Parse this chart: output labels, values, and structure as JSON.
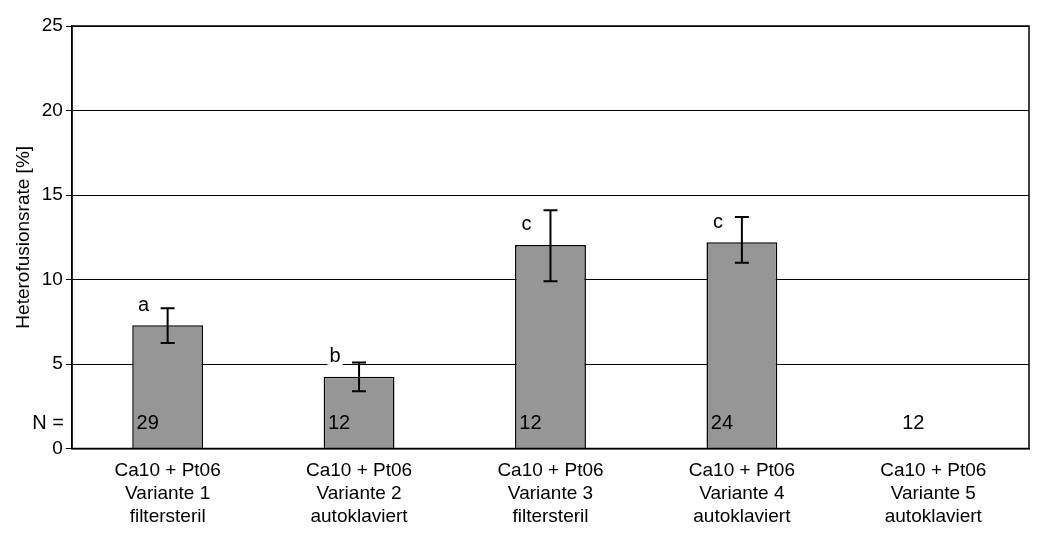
{
  "chart_data": {
    "type": "bar",
    "ylabel": "Heterofusionsrate [%]",
    "categories": [
      "Ca10 + Pt06\nVariante 1\nfiltersteril",
      "Ca10 + Pt06\nVariante 2\nautoklaviert",
      "Ca10 + Pt06\nVariante 3\nfiltersteril",
      "Ca10 + Pt06\nVariante 4\nautoklaviert",
      "Ca10 + Pt06\nVariante 5\nautoklaviert"
    ],
    "values": [
      7.3,
      4.25,
      12.05,
      12.2,
      0
    ],
    "errors": [
      [
        6.25,
        8.3
      ],
      [
        3.4,
        5.1
      ],
      [
        9.9,
        14.1
      ],
      [
        11.0,
        13.7
      ],
      null
    ],
    "color": "#969696",
    "ylim": [
      0,
      25
    ],
    "yticks": [
      0,
      5,
      10,
      15,
      20,
      25
    ],
    "grid": "y",
    "annotations": [
      "N =",
      "a",
      "b",
      "c",
      "c",
      "29",
      "12",
      "12",
      "24",
      "12"
    ]
  }
}
